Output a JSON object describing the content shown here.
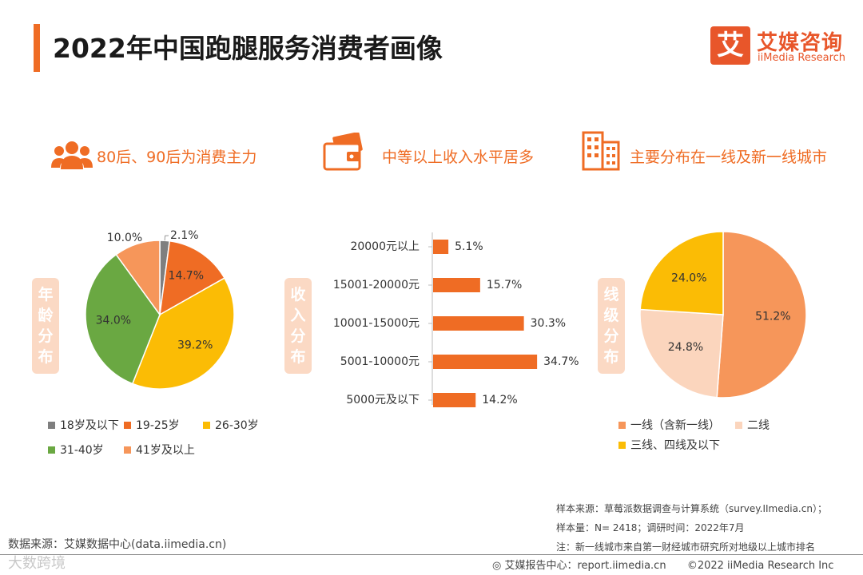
{
  "header": {
    "title": "2022年中国跑腿服务消费者画像",
    "logo_mark": "艾",
    "logo_cn": "艾媒咨询",
    "logo_en": "iiMedia Research"
  },
  "highlights": [
    {
      "text": "80后、90后为消费主力",
      "icon": "people-icon"
    },
    {
      "text": "中等以上收入水平居多",
      "icon": "wallet-icon"
    },
    {
      "text": "主要分布在一线及新一线城市",
      "icon": "buildings-icon"
    }
  ],
  "side_labels": {
    "age": [
      "年",
      "龄",
      "分",
      "布"
    ],
    "income": [
      "收",
      "入",
      "分",
      "布"
    ],
    "city": [
      "线",
      "级",
      "分",
      "布"
    ]
  },
  "chart_data": [
    {
      "type": "pie",
      "title": "年龄分布",
      "categories": [
        "18岁及以下",
        "19-25岁",
        "26-30岁",
        "31-40岁",
        "41岁及以上"
      ],
      "values": [
        2.1,
        14.7,
        39.2,
        34.0,
        10.0
      ],
      "labels": [
        "2.1%",
        "14.7%",
        "39.2%",
        "34.0%",
        "10.0%"
      ],
      "colors": [
        "#7f7f7f",
        "#ef6c24",
        "#fbbc05",
        "#6aa842",
        "#f6965a"
      ]
    },
    {
      "type": "bar",
      "orientation": "horizontal",
      "title": "收入分布",
      "categories": [
        "20000元以上",
        "15001-20000元",
        "10001-15000元",
        "5001-10000元",
        "5000元及以下"
      ],
      "values": [
        5.1,
        15.7,
        30.3,
        34.7,
        14.2
      ],
      "labels": [
        "5.1%",
        "15.7%",
        "30.3%",
        "34.7%",
        "14.2%"
      ],
      "color": "#ef6c24"
    },
    {
      "type": "pie",
      "title": "线级分布",
      "categories": [
        "一线（含新一线）",
        "二线",
        "三线、四线及以下"
      ],
      "values": [
        51.2,
        24.8,
        24.0
      ],
      "labels": [
        "51.2%",
        "24.8%",
        "24.0%"
      ],
      "colors": [
        "#f6965a",
        "#fbd5bd",
        "#fbbc05"
      ]
    }
  ],
  "footer": {
    "sample_source": "样本来源：草莓派数据调查与计算系统（survey.IImedia.cn）；",
    "sample_size": "样本量：N= 2418；调研时间：2022年7月",
    "note": "注：新一线城市来自第一财经城市研究所对地级以上城市排名",
    "data_source": "数据来源：艾媒数据中心(data.iimedia.cn)",
    "report_center": "艾媒报告中心：report.iimedia.cn",
    "copyright": "©2022  iiMedia Research  Inc",
    "watermark": "大数跨境"
  }
}
